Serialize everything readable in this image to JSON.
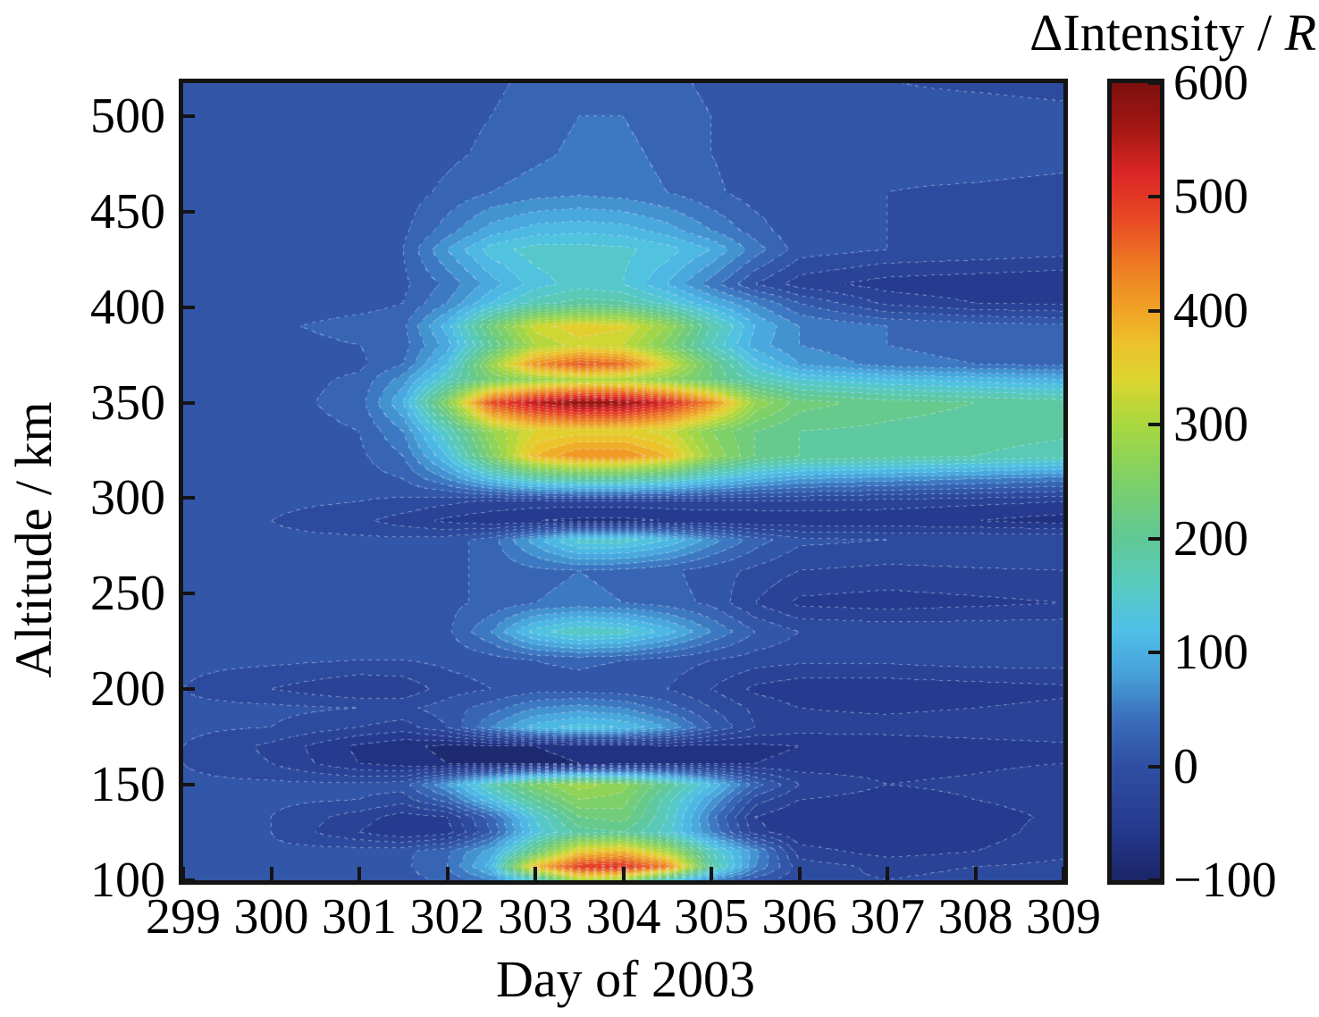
{
  "titles": {
    "colorbar_prefix": "ΔIntensity / ",
    "colorbar_italic": "R"
  },
  "chart_data": {
    "type": "filled_contour_heatmap",
    "x_axis": {
      "title": "Day of 2003",
      "range": [
        299,
        309
      ],
      "ticks": [
        299,
        300,
        301,
        302,
        303,
        304,
        305,
        306,
        307,
        308,
        309
      ]
    },
    "y_axis": {
      "title": "Altitude / km",
      "range": [
        100,
        517
      ],
      "ticks": [
        500,
        450,
        400,
        350,
        300,
        250,
        200,
        150,
        100
      ]
    },
    "colorbar": {
      "title": "ΔIntensity / R",
      "range": [
        -100,
        600
      ],
      "ticks": [
        600,
        500,
        400,
        300,
        200,
        100,
        0,
        -100
      ]
    },
    "grid_on": false,
    "legend": "colorbar-right",
    "contour_level_step": 20,
    "colormap_stops": [
      [
        -100,
        "#1b2567"
      ],
      [
        -60,
        "#24378b"
      ],
      [
        -30,
        "#2a4397"
      ],
      [
        0,
        "#2f4fa2"
      ],
      [
        40,
        "#3a6cba"
      ],
      [
        80,
        "#47a0d9"
      ],
      [
        120,
        "#4fc0e8"
      ],
      [
        160,
        "#58cbc0"
      ],
      [
        200,
        "#60c896"
      ],
      [
        250,
        "#7ed068"
      ],
      [
        300,
        "#a8d83f"
      ],
      [
        340,
        "#ddd52f"
      ],
      [
        370,
        "#ecc32c"
      ],
      [
        400,
        "#f0a426"
      ],
      [
        440,
        "#ee7b23"
      ],
      [
        480,
        "#e84a24"
      ],
      [
        520,
        "#dc2726"
      ],
      [
        560,
        "#a51713"
      ],
      [
        600,
        "#7c100e"
      ]
    ],
    "grid": {
      "days": [
        299,
        300,
        301,
        301.5,
        302,
        302.5,
        303,
        303.5,
        304,
        304.5,
        305,
        305.5,
        306,
        307,
        308,
        309
      ],
      "altitudes_km": [
        100,
        107,
        115,
        125,
        133,
        142,
        150,
        161,
        170,
        180,
        190,
        200,
        215,
        230,
        245,
        262,
        278,
        288,
        298,
        310,
        322,
        335,
        350,
        362,
        370,
        380,
        390,
        402,
        412,
        430,
        440,
        460,
        480,
        500,
        520
      ],
      "values": [
        [
          8,
          8,
          10,
          12,
          25,
          60,
          150,
          300,
          280,
          150,
          60,
          10,
          -15,
          -20,
          -15,
          -10
        ],
        [
          5,
          5,
          10,
          15,
          40,
          110,
          380,
          500,
          510,
          440,
          190,
          60,
          -10,
          -25,
          -20,
          -15
        ],
        [
          5,
          5,
          10,
          15,
          35,
          90,
          220,
          360,
          380,
          300,
          160,
          70,
          -30,
          -50,
          -40,
          -25
        ],
        [
          5,
          0,
          -40,
          -60,
          -50,
          20,
          130,
          190,
          200,
          150,
          60,
          -30,
          -60,
          -60,
          -50,
          -30
        ],
        [
          5,
          0,
          -30,
          -50,
          -40,
          30,
          140,
          220,
          230,
          160,
          50,
          -40,
          -60,
          -60,
          -50,
          -35
        ],
        [
          5,
          5,
          0,
          -10,
          30,
          120,
          200,
          260,
          250,
          170,
          80,
          -10,
          -40,
          -50,
          -40,
          -30
        ],
        [
          5,
          5,
          5,
          10,
          80,
          170,
          250,
          290,
          270,
          200,
          120,
          30,
          -20,
          -40,
          -35,
          -25
        ],
        [
          0,
          -20,
          -60,
          -70,
          -80,
          -85,
          -85,
          -80,
          -70,
          -60,
          -60,
          -60,
          -55,
          -50,
          -45,
          -40
        ],
        [
          0,
          -25,
          -65,
          -75,
          -85,
          -85,
          -80,
          -75,
          -70,
          -65,
          -65,
          -65,
          -60,
          -55,
          -50,
          -45
        ],
        [
          5,
          0,
          -20,
          -30,
          0,
          60,
          110,
          130,
          120,
          80,
          20,
          -20,
          -30,
          -30,
          -25,
          -20
        ],
        [
          5,
          5,
          0,
          -5,
          10,
          30,
          60,
          70,
          60,
          30,
          0,
          -25,
          -40,
          -45,
          -40,
          -35
        ],
        [
          0,
          -20,
          -40,
          -35,
          -10,
          0,
          10,
          10,
          5,
          0,
          -20,
          -45,
          -55,
          -55,
          -50,
          -45
        ],
        [
          5,
          5,
          0,
          0,
          5,
          10,
          20,
          25,
          20,
          10,
          0,
          -10,
          -15,
          -15,
          -10,
          -10
        ],
        [
          5,
          5,
          5,
          5,
          15,
          60,
          130,
          160,
          150,
          110,
          60,
          20,
          0,
          -5,
          -5,
          -5
        ],
        [
          5,
          5,
          5,
          8,
          15,
          25,
          40,
          45,
          40,
          30,
          15,
          -20,
          -45,
          -50,
          -45,
          -40
        ],
        [
          5,
          5,
          8,
          10,
          15,
          25,
          35,
          40,
          35,
          25,
          10,
          -5,
          -20,
          -25,
          -22,
          -20
        ],
        [
          5,
          5,
          5,
          5,
          10,
          30,
          90,
          150,
          150,
          120,
          70,
          30,
          5,
          0,
          0,
          0
        ],
        [
          5,
          0,
          -15,
          -30,
          -45,
          -55,
          -60,
          -65,
          -65,
          -60,
          -58,
          -58,
          -55,
          -55,
          -60,
          -70
        ],
        [
          5,
          5,
          0,
          -5,
          -15,
          -25,
          -30,
          -30,
          -30,
          -28,
          -25,
          -25,
          -25,
          -30,
          -35,
          -40
        ],
        [
          5,
          5,
          10,
          20,
          60,
          120,
          170,
          190,
          190,
          170,
          130,
          100,
          80,
          70,
          60,
          50
        ],
        [
          5,
          5,
          15,
          40,
          120,
          250,
          380,
          420,
          420,
          380,
          280,
          220,
          200,
          190,
          180,
          170
        ],
        [
          5,
          8,
          20,
          60,
          160,
          280,
          340,
          350,
          350,
          330,
          260,
          220,
          200,
          195,
          190,
          185
        ],
        [
          5,
          10,
          30,
          100,
          260,
          480,
          545,
          580,
          570,
          520,
          430,
          280,
          230,
          210,
          200,
          190
        ],
        [
          5,
          8,
          25,
          70,
          160,
          240,
          280,
          300,
          300,
          270,
          220,
          170,
          140,
          120,
          110,
          100
        ],
        [
          5,
          5,
          15,
          40,
          120,
          280,
          420,
          470,
          450,
          340,
          220,
          130,
          80,
          50,
          40,
          35
        ],
        [
          5,
          10,
          20,
          30,
          90,
          200,
          300,
          330,
          320,
          250,
          160,
          90,
          60,
          40,
          30,
          25
        ],
        [
          5,
          15,
          30,
          35,
          110,
          230,
          330,
          355,
          345,
          280,
          180,
          100,
          60,
          40,
          30,
          25
        ],
        [
          5,
          5,
          10,
          20,
          60,
          120,
          170,
          190,
          185,
          150,
          100,
          60,
          20,
          -25,
          -40,
          -45
        ],
        [
          5,
          5,
          8,
          15,
          45,
          90,
          130,
          150,
          140,
          100,
          50,
          0,
          -30,
          -50,
          -55,
          -60
        ],
        [
          5,
          5,
          8,
          20,
          80,
          130,
          150,
          150,
          145,
          130,
          100,
          50,
          10,
          0,
          -5,
          -10
        ],
        [
          5,
          5,
          8,
          15,
          50,
          90,
          110,
          115,
          110,
          90,
          60,
          30,
          5,
          0,
          -5,
          -10
        ],
        [
          5,
          5,
          5,
          10,
          25,
          40,
          50,
          55,
          50,
          40,
          25,
          10,
          5,
          0,
          -5,
          -10
        ],
        [
          5,
          5,
          5,
          8,
          15,
          25,
          35,
          45,
          45,
          35,
          20,
          10,
          5,
          10,
          15,
          10
        ],
        [
          5,
          5,
          5,
          8,
          12,
          20,
          30,
          40,
          40,
          30,
          20,
          10,
          5,
          5,
          8,
          5
        ],
        [
          5,
          5,
          5,
          8,
          10,
          15,
          25,
          35,
          35,
          25,
          15,
          8,
          5,
          0,
          -5,
          -8
        ]
      ]
    }
  }
}
